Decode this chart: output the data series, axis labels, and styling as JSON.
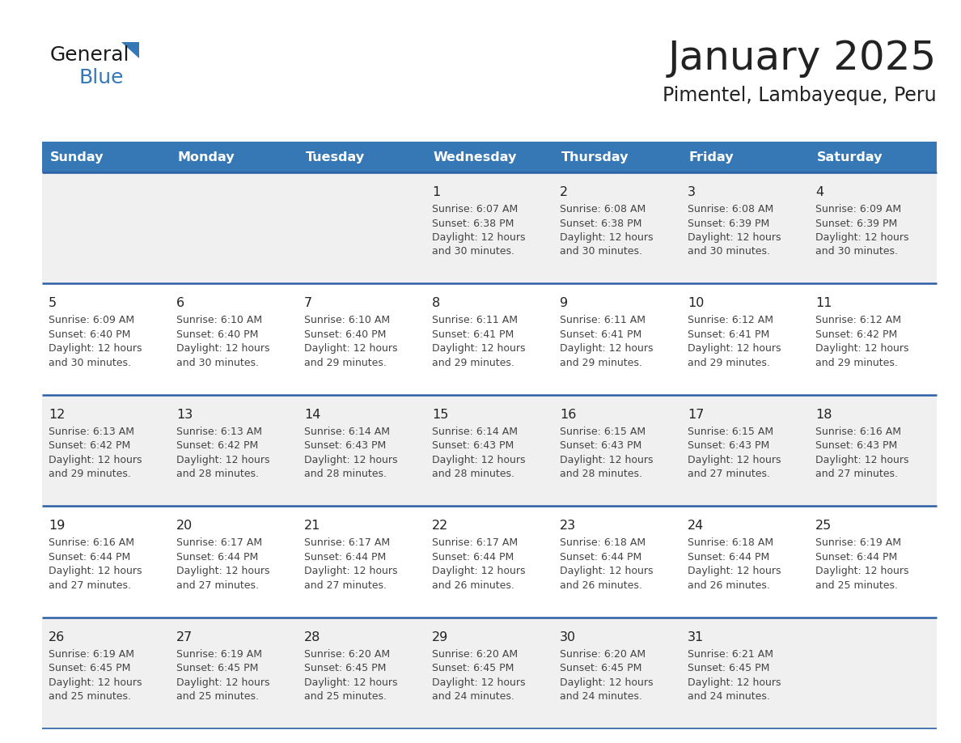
{
  "title": "January 2025",
  "subtitle": "Pimentel, Lambayeque, Peru",
  "header_color": "#3578b5",
  "header_text_color": "#ffffff",
  "day_names": [
    "Sunday",
    "Monday",
    "Tuesday",
    "Wednesday",
    "Thursday",
    "Friday",
    "Saturday"
  ],
  "background_color": "#ffffff",
  "cell_bg_even": "#f0f0f0",
  "cell_bg_odd": "#ffffff",
  "separator_color": "#2a5fa5",
  "text_color": "#444444",
  "num_color": "#222222",
  "logo_general_color": "#1a1a1a",
  "logo_blue_color": "#3578b5",
  "logo_triangle_color": "#3578b5",
  "days": [
    {
      "day": 1,
      "col": 3,
      "row": 0,
      "sunrise": "6:07 AM",
      "sunset": "6:38 PM",
      "daylight_hours": 12,
      "daylight_minutes": 30
    },
    {
      "day": 2,
      "col": 4,
      "row": 0,
      "sunrise": "6:08 AM",
      "sunset": "6:38 PM",
      "daylight_hours": 12,
      "daylight_minutes": 30
    },
    {
      "day": 3,
      "col": 5,
      "row": 0,
      "sunrise": "6:08 AM",
      "sunset": "6:39 PM",
      "daylight_hours": 12,
      "daylight_minutes": 30
    },
    {
      "day": 4,
      "col": 6,
      "row": 0,
      "sunrise": "6:09 AM",
      "sunset": "6:39 PM",
      "daylight_hours": 12,
      "daylight_minutes": 30
    },
    {
      "day": 5,
      "col": 0,
      "row": 1,
      "sunrise": "6:09 AM",
      "sunset": "6:40 PM",
      "daylight_hours": 12,
      "daylight_minutes": 30
    },
    {
      "day": 6,
      "col": 1,
      "row": 1,
      "sunrise": "6:10 AM",
      "sunset": "6:40 PM",
      "daylight_hours": 12,
      "daylight_minutes": 30
    },
    {
      "day": 7,
      "col": 2,
      "row": 1,
      "sunrise": "6:10 AM",
      "sunset": "6:40 PM",
      "daylight_hours": 12,
      "daylight_minutes": 29
    },
    {
      "day": 8,
      "col": 3,
      "row": 1,
      "sunrise": "6:11 AM",
      "sunset": "6:41 PM",
      "daylight_hours": 12,
      "daylight_minutes": 29
    },
    {
      "day": 9,
      "col": 4,
      "row": 1,
      "sunrise": "6:11 AM",
      "sunset": "6:41 PM",
      "daylight_hours": 12,
      "daylight_minutes": 29
    },
    {
      "day": 10,
      "col": 5,
      "row": 1,
      "sunrise": "6:12 AM",
      "sunset": "6:41 PM",
      "daylight_hours": 12,
      "daylight_minutes": 29
    },
    {
      "day": 11,
      "col": 6,
      "row": 1,
      "sunrise": "6:12 AM",
      "sunset": "6:42 PM",
      "daylight_hours": 12,
      "daylight_minutes": 29
    },
    {
      "day": 12,
      "col": 0,
      "row": 2,
      "sunrise": "6:13 AM",
      "sunset": "6:42 PM",
      "daylight_hours": 12,
      "daylight_minutes": 29
    },
    {
      "day": 13,
      "col": 1,
      "row": 2,
      "sunrise": "6:13 AM",
      "sunset": "6:42 PM",
      "daylight_hours": 12,
      "daylight_minutes": 28
    },
    {
      "day": 14,
      "col": 2,
      "row": 2,
      "sunrise": "6:14 AM",
      "sunset": "6:43 PM",
      "daylight_hours": 12,
      "daylight_minutes": 28
    },
    {
      "day": 15,
      "col": 3,
      "row": 2,
      "sunrise": "6:14 AM",
      "sunset": "6:43 PM",
      "daylight_hours": 12,
      "daylight_minutes": 28
    },
    {
      "day": 16,
      "col": 4,
      "row": 2,
      "sunrise": "6:15 AM",
      "sunset": "6:43 PM",
      "daylight_hours": 12,
      "daylight_minutes": 28
    },
    {
      "day": 17,
      "col": 5,
      "row": 2,
      "sunrise": "6:15 AM",
      "sunset": "6:43 PM",
      "daylight_hours": 12,
      "daylight_minutes": 27
    },
    {
      "day": 18,
      "col": 6,
      "row": 2,
      "sunrise": "6:16 AM",
      "sunset": "6:43 PM",
      "daylight_hours": 12,
      "daylight_minutes": 27
    },
    {
      "day": 19,
      "col": 0,
      "row": 3,
      "sunrise": "6:16 AM",
      "sunset": "6:44 PM",
      "daylight_hours": 12,
      "daylight_minutes": 27
    },
    {
      "day": 20,
      "col": 1,
      "row": 3,
      "sunrise": "6:17 AM",
      "sunset": "6:44 PM",
      "daylight_hours": 12,
      "daylight_minutes": 27
    },
    {
      "day": 21,
      "col": 2,
      "row": 3,
      "sunrise": "6:17 AM",
      "sunset": "6:44 PM",
      "daylight_hours": 12,
      "daylight_minutes": 27
    },
    {
      "day": 22,
      "col": 3,
      "row": 3,
      "sunrise": "6:17 AM",
      "sunset": "6:44 PM",
      "daylight_hours": 12,
      "daylight_minutes": 26
    },
    {
      "day": 23,
      "col": 4,
      "row": 3,
      "sunrise": "6:18 AM",
      "sunset": "6:44 PM",
      "daylight_hours": 12,
      "daylight_minutes": 26
    },
    {
      "day": 24,
      "col": 5,
      "row": 3,
      "sunrise": "6:18 AM",
      "sunset": "6:44 PM",
      "daylight_hours": 12,
      "daylight_minutes": 26
    },
    {
      "day": 25,
      "col": 6,
      "row": 3,
      "sunrise": "6:19 AM",
      "sunset": "6:44 PM",
      "daylight_hours": 12,
      "daylight_minutes": 25
    },
    {
      "day": 26,
      "col": 0,
      "row": 4,
      "sunrise": "6:19 AM",
      "sunset": "6:45 PM",
      "daylight_hours": 12,
      "daylight_minutes": 25
    },
    {
      "day": 27,
      "col": 1,
      "row": 4,
      "sunrise": "6:19 AM",
      "sunset": "6:45 PM",
      "daylight_hours": 12,
      "daylight_minutes": 25
    },
    {
      "day": 28,
      "col": 2,
      "row": 4,
      "sunrise": "6:20 AM",
      "sunset": "6:45 PM",
      "daylight_hours": 12,
      "daylight_minutes": 25
    },
    {
      "day": 29,
      "col": 3,
      "row": 4,
      "sunrise": "6:20 AM",
      "sunset": "6:45 PM",
      "daylight_hours": 12,
      "daylight_minutes": 24
    },
    {
      "day": 30,
      "col": 4,
      "row": 4,
      "sunrise": "6:20 AM",
      "sunset": "6:45 PM",
      "daylight_hours": 12,
      "daylight_minutes": 24
    },
    {
      "day": 31,
      "col": 5,
      "row": 4,
      "sunrise": "6:21 AM",
      "sunset": "6:45 PM",
      "daylight_hours": 12,
      "daylight_minutes": 24
    }
  ]
}
